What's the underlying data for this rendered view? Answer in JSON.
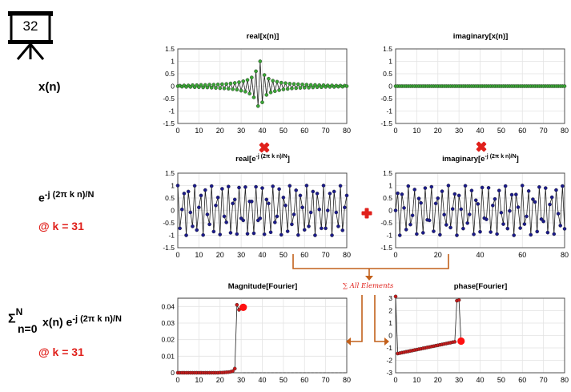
{
  "slide_number": "32",
  "labels": {
    "xn": "x(n)",
    "exp_base": "e",
    "exp_sup": "-j (2π k n)/N",
    "at_k1": "@ k = 31",
    "sum_sigma": "Σ",
    "sum_sub": "n=0",
    "sum_sup": "N",
    "sum_term": "x(n) e",
    "sum_term_sup": "-j (2π k n)/N",
    "at_k2": "@ k = 31",
    "sum_all": "∑ All Elements"
  },
  "colors": {
    "green_marker": "#3aa635",
    "blue_marker": "#1a1a8c",
    "red_marker": "#c91a1a",
    "red_big": "#ff1010",
    "arrow": "#c2601b",
    "op_red": "#e0201b"
  },
  "chart_data": [
    {
      "id": "real-x",
      "type": "line",
      "title": "real[x(n)]",
      "title_parts": [],
      "xlim": [
        0,
        80
      ],
      "ylim": [
        -1.5,
        1.5
      ],
      "xticks": [
        "0",
        "10",
        "20",
        "30",
        "40",
        "50",
        "60",
        "70",
        "80"
      ],
      "yticks": [
        "1.5",
        "1",
        "0.5",
        "0",
        "-0.5",
        "-1",
        "-1.5"
      ],
      "grid": true,
      "series": [
        {
          "marker_color": "#3aa635",
          "x": [
            0,
            1,
            2,
            3,
            4,
            5,
            6,
            7,
            8,
            9,
            10,
            11,
            12,
            13,
            14,
            15,
            16,
            17,
            18,
            19,
            20,
            21,
            22,
            23,
            24,
            25,
            26,
            27,
            28,
            29,
            30,
            31,
            32,
            33,
            34,
            35,
            36,
            37,
            38,
            39,
            40,
            41,
            42,
            43,
            44,
            45,
            46,
            47,
            48,
            49,
            50,
            51,
            52,
            53,
            54,
            55,
            56,
            57,
            58,
            59,
            60,
            61,
            62,
            63,
            64,
            65,
            66,
            67,
            68,
            69,
            70,
            71,
            72,
            73,
            74,
            75,
            76,
            77,
            78,
            79,
            80
          ],
          "y": [
            0,
            0.02,
            -0.02,
            0.03,
            -0.03,
            0.03,
            -0.03,
            0.04,
            -0.04,
            0.04,
            -0.04,
            0.05,
            -0.05,
            0.05,
            -0.05,
            0.06,
            -0.06,
            0.06,
            -0.07,
            0.07,
            -0.08,
            0.08,
            -0.09,
            0.09,
            -0.1,
            0.11,
            -0.12,
            0.13,
            -0.14,
            0.16,
            -0.18,
            0.2,
            -0.22,
            0.25,
            -0.3,
            0.35,
            -0.45,
            0.6,
            -0.8,
            1.0,
            -0.65,
            0.45,
            -0.35,
            0.3,
            -0.25,
            0.22,
            -0.2,
            0.18,
            -0.16,
            0.14,
            -0.13,
            0.12,
            -0.11,
            0.1,
            -0.09,
            0.09,
            -0.08,
            0.08,
            -0.07,
            0.07,
            -0.06,
            0.06,
            -0.06,
            0.05,
            -0.05,
            0.05,
            -0.04,
            0.04,
            -0.04,
            0.04,
            -0.03,
            0.03,
            -0.03,
            0.03,
            -0.03,
            0.02,
            -0.02,
            0.02,
            -0.02,
            0.02,
            0.0
          ]
        }
      ]
    },
    {
      "id": "imag-x",
      "type": "line",
      "title": "imaginary[x(n)]",
      "title_parts": [],
      "xlim": [
        0,
        80
      ],
      "ylim": [
        -1.5,
        1.5
      ],
      "xticks": [
        "0",
        "10",
        "20",
        "30",
        "40",
        "50",
        "60",
        "70",
        "80"
      ],
      "yticks": [
        "1.5",
        "1",
        "0.5",
        "0",
        "-0.5",
        "-1",
        "-1.5"
      ],
      "grid": true,
      "series": [
        {
          "marker_color": "#3aa635",
          "x": [
            0,
            1,
            2,
            3,
            4,
            5,
            6,
            7,
            8,
            9,
            10,
            11,
            12,
            13,
            14,
            15,
            16,
            17,
            18,
            19,
            20,
            21,
            22,
            23,
            24,
            25,
            26,
            27,
            28,
            29,
            30,
            31,
            32,
            33,
            34,
            35,
            36,
            37,
            38,
            39,
            40,
            41,
            42,
            43,
            44,
            45,
            46,
            47,
            48,
            49,
            50,
            51,
            52,
            53,
            54,
            55,
            56,
            57,
            58,
            59,
            60,
            61,
            62,
            63,
            64,
            65,
            66,
            67,
            68,
            69,
            70,
            71,
            72,
            73,
            74,
            75,
            76,
            77,
            78,
            79,
            80
          ],
          "y": [
            0,
            0,
            0,
            0,
            0,
            0,
            0,
            0,
            0,
            0,
            0,
            0,
            0,
            0,
            0,
            0,
            0,
            0,
            0,
            0,
            0,
            0,
            0,
            0,
            0,
            0,
            0,
            0,
            0,
            0,
            0,
            0,
            0,
            0,
            0,
            0,
            0,
            0,
            0,
            0,
            0,
            0,
            0,
            0,
            0,
            0,
            0,
            0,
            0,
            0,
            0,
            0,
            0,
            0,
            0,
            0,
            0,
            0,
            0,
            0,
            0,
            0,
            0,
            0,
            0,
            0,
            0,
            0,
            0,
            0,
            0,
            0,
            0,
            0,
            0,
            0,
            0,
            0,
            0,
            0,
            0
          ]
        }
      ]
    },
    {
      "id": "real-exp",
      "type": "line",
      "title": "",
      "title_parts": [
        "real[e",
        "-j (2π k n)/N",
        "]"
      ],
      "xlim": [
        0,
        80
      ],
      "ylim": [
        -1.5,
        1.5
      ],
      "xticks": [
        "0",
        "10",
        "20",
        "30",
        "40",
        "50",
        "60",
        "70",
        "80"
      ],
      "yticks": [
        "1.5",
        "1",
        "0.5",
        "0",
        "-0.5",
        "-1",
        "-1.5"
      ],
      "grid": true,
      "series": [
        {
          "marker_color": "#1a1a8c",
          "x": [
            0,
            1,
            2,
            3,
            4,
            5,
            6,
            7,
            8,
            9,
            10,
            11,
            12,
            13,
            14,
            15,
            16,
            17,
            18,
            19,
            20,
            21,
            22,
            23,
            24,
            25,
            26,
            27,
            28,
            29,
            30,
            31,
            32,
            33,
            34,
            35,
            36,
            37,
            38,
            39,
            40,
            41,
            42,
            43,
            44,
            45,
            46,
            47,
            48,
            49,
            50,
            51,
            52,
            53,
            54,
            55,
            56,
            57,
            58,
            59,
            60,
            61,
            62,
            63,
            64,
            65,
            66,
            67,
            68,
            69,
            70,
            71,
            72,
            73,
            74,
            75,
            76,
            77,
            78,
            79,
            80
          ],
          "y": [
            1.0,
            -0.72,
            0.04,
            0.68,
            -1.0,
            0.76,
            -0.08,
            -0.64,
            0.99,
            -0.79,
            0.12,
            0.6,
            -0.99,
            0.82,
            -0.16,
            -0.56,
            0.98,
            -0.85,
            0.2,
            0.52,
            -0.97,
            0.87,
            -0.24,
            -0.48,
            0.96,
            -0.9,
            0.28,
            0.44,
            -0.95,
            0.92,
            -0.32,
            -0.4,
            0.94,
            -0.94,
            0.36,
            0.36,
            -0.92,
            0.95,
            -0.4,
            -0.32,
            0.9,
            -0.96,
            0.44,
            0.28,
            -0.88,
            0.97,
            -0.48,
            -0.24,
            0.86,
            -0.98,
            0.52,
            0.2,
            -0.84,
            0.99,
            -0.56,
            -0.16,
            0.81,
            -0.99,
            0.6,
            0.12,
            -0.78,
            1.0,
            -0.64,
            -0.08,
            0.76,
            -1.0,
            0.68,
            0.04,
            -0.72,
            1.0,
            -0.72,
            0.0,
            0.68,
            -1.0,
            0.76,
            -0.08,
            -0.64,
            0.99,
            -0.8,
            0.12,
            0.6
          ]
        }
      ]
    },
    {
      "id": "imag-exp",
      "type": "line",
      "title": "",
      "title_parts": [
        "imaginary[e",
        "-j (2π k n)/N",
        "]"
      ],
      "xlim": [
        0,
        80
      ],
      "ylim": [
        -1.5,
        1.5
      ],
      "xticks": [
        "0",
        "20",
        "40",
        "60",
        "80"
      ],
      "yticks": [
        "1.5",
        "1",
        "0.5",
        "0",
        "-0.5",
        "-1",
        "-1.5"
      ],
      "grid": true,
      "series": [
        {
          "marker_color": "#1a1a8c",
          "x": [
            0,
            1,
            2,
            3,
            4,
            5,
            6,
            7,
            8,
            9,
            10,
            11,
            12,
            13,
            14,
            15,
            16,
            17,
            18,
            19,
            20,
            21,
            22,
            23,
            24,
            25,
            26,
            27,
            28,
            29,
            30,
            31,
            32,
            33,
            34,
            35,
            36,
            37,
            38,
            39,
            40,
            41,
            42,
            43,
            44,
            45,
            46,
            47,
            48,
            49,
            50,
            51,
            52,
            53,
            54,
            55,
            56,
            57,
            58,
            59,
            60,
            61,
            62,
            63,
            64,
            65,
            66,
            67,
            68,
            69,
            70,
            71,
            72,
            73,
            74,
            75,
            76,
            77,
            78,
            79,
            80
          ],
          "y": [
            0,
            0.69,
            -1.0,
            0.65,
            0.1,
            -0.77,
            0.98,
            -0.57,
            -0.2,
            0.84,
            -0.95,
            0.48,
            0.3,
            -0.9,
            0.9,
            -0.38,
            -0.4,
            0.95,
            -0.84,
            0.28,
            0.49,
            -0.98,
            0.77,
            -0.17,
            -0.58,
            1.0,
            -0.69,
            0.06,
            0.66,
            -1.0,
            0.6,
            0.05,
            -0.73,
            0.99,
            -0.51,
            -0.16,
            0.8,
            -0.96,
            0.41,
            0.26,
            -0.86,
            0.92,
            -0.31,
            -0.36,
            0.91,
            -0.87,
            0.2,
            0.46,
            -0.95,
            0.8,
            -0.09,
            -0.55,
            0.98,
            -0.73,
            -0.02,
            0.63,
            -1.0,
            0.64,
            0.13,
            -0.71,
            1.0,
            -0.55,
            -0.24,
            0.78,
            -0.98,
            0.45,
            0.34,
            -0.85,
            0.94,
            -0.35,
            -0.44,
            0.9,
            -0.89,
            0.24,
            0.53,
            -0.95,
            0.82,
            -0.13,
            -0.61,
            0.98,
            -0.74
          ]
        }
      ]
    },
    {
      "id": "magnitude",
      "type": "line",
      "title": "Magnitude[Fourier]",
      "title_parts": [],
      "xlim": [
        0,
        80
      ],
      "ylim": [
        0,
        0.045
      ],
      "xticks": [
        "0",
        "10",
        "20",
        "30",
        "40",
        "50",
        "60",
        "70",
        "80"
      ],
      "yticks": [
        "0.04",
        "0.03",
        "0.02",
        "0.01",
        "0"
      ],
      "ytick_values": [
        0.04,
        0.03,
        0.02,
        0.01,
        0
      ],
      "grid": true,
      "dashed_after": 31,
      "highlight": {
        "x": 31,
        "y": 0.0395
      },
      "series": [
        {
          "marker_color": "#c91a1a",
          "x": [
            0,
            1,
            2,
            3,
            4,
            5,
            6,
            7,
            8,
            9,
            10,
            11,
            12,
            13,
            14,
            15,
            16,
            17,
            18,
            19,
            20,
            21,
            22,
            23,
            24,
            25,
            26,
            27,
            28,
            29,
            30,
            31
          ],
          "y": [
            0,
            0,
            0,
            0,
            0,
            0,
            0,
            0,
            0,
            0,
            0,
            0,
            0,
            0,
            0,
            0,
            0,
            0,
            0,
            0,
            0.0001,
            0.0001,
            0.0002,
            0.0003,
            0.0004,
            0.0006,
            0.001,
            0.0025,
            0.041,
            0.038,
            0.0395,
            0.0395
          ]
        }
      ]
    },
    {
      "id": "phase",
      "type": "line",
      "title": "phase[Fourier]",
      "title_parts": [],
      "xlim": [
        0,
        80
      ],
      "ylim": [
        -3,
        3
      ],
      "xticks": [
        "0",
        "10",
        "20",
        "30",
        "40",
        "50",
        "60",
        "70",
        "80"
      ],
      "yticks": [
        "3",
        "2",
        "1",
        "0",
        "-1",
        "-2",
        "-3"
      ],
      "grid": true,
      "highlight": {
        "x": 31,
        "y": -0.45
      },
      "series": [
        {
          "marker_color": "#c91a1a",
          "x": [
            0,
            1,
            2,
            3,
            4,
            5,
            6,
            7,
            8,
            9,
            10,
            11,
            12,
            13,
            14,
            15,
            16,
            17,
            18,
            19,
            20,
            21,
            22,
            23,
            24,
            25,
            26,
            27,
            28,
            29,
            30,
            31
          ],
          "y": [
            3.14,
            -1.45,
            -1.42,
            -1.38,
            -1.35,
            -1.31,
            -1.28,
            -1.24,
            -1.21,
            -1.17,
            -1.14,
            -1.1,
            -1.07,
            -1.03,
            -1.0,
            -0.96,
            -0.93,
            -0.89,
            -0.86,
            -0.82,
            -0.79,
            -0.75,
            -0.72,
            -0.68,
            -0.65,
            -0.61,
            -0.58,
            -0.54,
            -0.51,
            2.8,
            2.85,
            -0.45
          ]
        }
      ]
    }
  ]
}
